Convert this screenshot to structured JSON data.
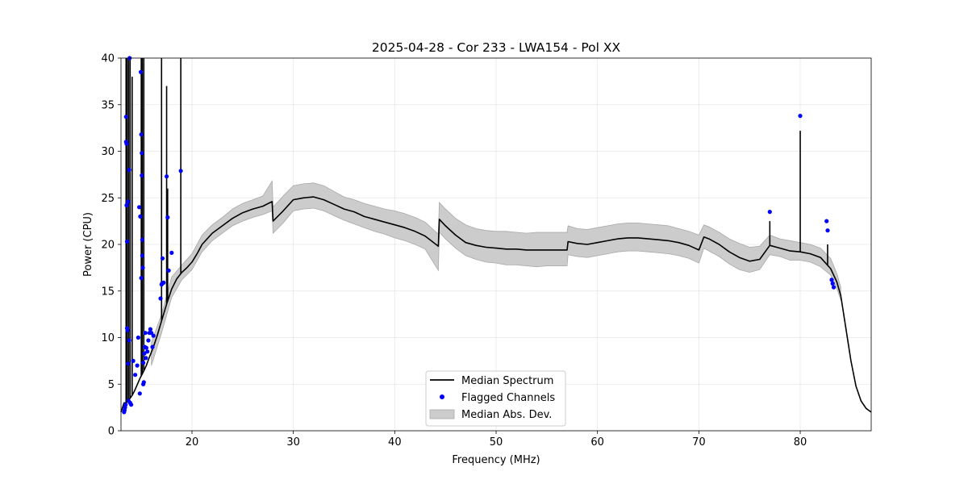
{
  "chart_data": {
    "type": "line",
    "title": "2025-04-28 - Cor 233 - LWA154 - Pol XX",
    "xlabel": "Frequency (MHz)",
    "ylabel": "Power (CPU)",
    "xlim": [
      13.0,
      87.0
    ],
    "ylim": [
      0,
      40
    ],
    "xticks": [
      20,
      30,
      40,
      50,
      60,
      70,
      80
    ],
    "yticks": [
      0,
      5,
      10,
      15,
      20,
      25,
      30,
      35,
      40
    ],
    "grid": true,
    "legend_position": "bottom-center",
    "series": [
      {
        "name": "Median Spectrum",
        "kind": "line",
        "color": "#000000",
        "x": [
          13.0,
          13.3,
          13.5,
          13.7,
          13.9,
          14.1,
          14.3,
          14.5,
          14.7,
          14.9,
          15.2,
          15.5,
          15.8,
          16.2,
          16.6,
          17.0,
          17.5,
          18.0,
          18.5,
          19.0,
          19.5,
          20.0,
          20.5,
          21.0,
          22.0,
          23.0,
          24.0,
          25.0,
          26.0,
          27.0,
          27.9,
          28.0,
          29.0,
          30.0,
          31.0,
          32.0,
          33.0,
          34.0,
          35.0,
          36.0,
          37.0,
          38.0,
          39.0,
          40.0,
          41.0,
          42.0,
          43.0,
          44.3,
          44.4,
          45.0,
          46.0,
          47.0,
          48.0,
          49.0,
          50.0,
          51.0,
          52.0,
          53.0,
          54.0,
          55.0,
          56.0,
          57.0,
          57.1,
          58.0,
          59.0,
          60.0,
          61.0,
          62.0,
          63.0,
          64.0,
          65.0,
          66.0,
          67.0,
          68.0,
          69.0,
          70.0,
          70.5,
          71.0,
          72.0,
          73.0,
          74.0,
          75.0,
          76.0,
          77.0,
          78.0,
          79.0,
          80.0,
          81.0,
          82.0,
          83.0,
          83.6,
          84.0,
          84.5,
          85.0,
          85.5,
          86.0,
          86.5,
          87.0
        ],
        "y": [
          2.0,
          3.0,
          3.0,
          3.2,
          3.5,
          3.8,
          4.2,
          4.7,
          5.2,
          5.7,
          6.3,
          7.0,
          7.9,
          9.0,
          10.3,
          11.8,
          13.6,
          15.2,
          16.3,
          17.0,
          17.5,
          18.1,
          19.0,
          20.0,
          21.2,
          22.0,
          22.8,
          23.4,
          23.8,
          24.1,
          24.6,
          22.5,
          23.6,
          24.8,
          25.0,
          25.1,
          24.8,
          24.3,
          23.8,
          23.5,
          23.0,
          22.7,
          22.4,
          22.1,
          21.8,
          21.4,
          20.9,
          19.8,
          22.7,
          22.0,
          21.0,
          20.2,
          19.9,
          19.7,
          19.6,
          19.5,
          19.5,
          19.4,
          19.4,
          19.4,
          19.4,
          19.4,
          20.3,
          20.1,
          20.0,
          20.2,
          20.4,
          20.6,
          20.7,
          20.7,
          20.6,
          20.5,
          20.4,
          20.2,
          19.9,
          19.4,
          20.8,
          20.6,
          20.0,
          19.2,
          18.6,
          18.2,
          18.4,
          19.9,
          19.6,
          19.3,
          19.2,
          19.0,
          18.6,
          17.4,
          16.0,
          14.5,
          11.0,
          7.5,
          4.8,
          3.2,
          2.4,
          2.0
        ]
      },
      {
        "name": "Flagged Channels",
        "kind": "scatter",
        "color": "#0000ff",
        "x": [
          13.3,
          13.35,
          13.4,
          13.45,
          13.5,
          13.5,
          13.55,
          13.55,
          13.6,
          13.6,
          13.65,
          13.7,
          13.7,
          13.75,
          13.8,
          13.8,
          13.85,
          13.9,
          14.0,
          14.2,
          14.4,
          14.6,
          14.7,
          14.8,
          14.85,
          14.9,
          14.95,
          15.0,
          15.0,
          15.05,
          15.05,
          15.1,
          15.1,
          15.15,
          15.2,
          15.2,
          15.25,
          15.3,
          15.35,
          15.4,
          15.45,
          15.5,
          15.6,
          15.7,
          15.8,
          15.9,
          16.0,
          16.1,
          16.2,
          16.9,
          17.0,
          17.05,
          17.1,
          17.2,
          17.5,
          17.6,
          17.7,
          18.0,
          18.9,
          77.0,
          80.0,
          82.6,
          82.7,
          83.1,
          83.2,
          83.3
        ],
        "y": [
          2.0,
          2.2,
          2.5,
          2.8,
          33.7,
          31.0,
          30.8,
          24.2,
          20.3,
          11.0,
          10.8,
          7.2,
          24.6,
          3.2,
          28.0,
          9.7,
          40.0,
          3.0,
          2.8,
          7.5,
          6.0,
          7.0,
          10.0,
          24.0,
          4.0,
          23.0,
          38.5,
          31.8,
          16.4,
          27.4,
          29.8,
          20.5,
          18.8,
          17.5,
          5.0,
          7.3,
          5.2,
          8.3,
          9.0,
          10.5,
          7.8,
          8.9,
          8.5,
          9.7,
          10.5,
          10.9,
          10.5,
          9.0,
          10.2,
          14.2,
          15.7,
          15.8,
          18.5,
          15.9,
          27.3,
          22.9,
          17.2,
          19.1,
          27.9,
          23.5,
          33.8,
          22.5,
          21.5,
          16.2,
          15.8,
          15.4
        ]
      },
      {
        "name": "Median Abs. Dev.",
        "kind": "band",
        "color": "#cccccc",
        "x": [
          16.0,
          17.0,
          18.0,
          19.0,
          20.0,
          21.0,
          22.0,
          23.0,
          24.0,
          25.0,
          26.0,
          27.0,
          27.9,
          28.0,
          29.0,
          30.0,
          31.0,
          32.0,
          33.0,
          34.0,
          35.0,
          36.0,
          37.0,
          38.0,
          39.0,
          40.0,
          41.0,
          42.0,
          43.0,
          44.3,
          44.4,
          45.0,
          46.0,
          47.0,
          48.0,
          49.0,
          50.0,
          51.0,
          52.0,
          53.0,
          54.0,
          55.0,
          56.0,
          57.0,
          57.1,
          58.0,
          59.0,
          60.0,
          61.0,
          62.0,
          63.0,
          64.0,
          65.0,
          66.0,
          67.0,
          68.0,
          69.0,
          70.0,
          70.5,
          71.0,
          72.0,
          73.0,
          74.0,
          75.0,
          76.0,
          77.0,
          78.0,
          79.0,
          80.0,
          81.0,
          82.0,
          83.0,
          83.6,
          84.0
        ],
        "low": [
          7.0,
          10.5,
          14.3,
          16.2,
          17.3,
          19.2,
          20.4,
          21.2,
          22.0,
          22.5,
          22.9,
          23.2,
          23.6,
          21.2,
          22.3,
          23.6,
          23.8,
          23.9,
          23.6,
          23.1,
          22.6,
          22.2,
          21.8,
          21.4,
          21.1,
          20.7,
          20.4,
          20.0,
          19.5,
          17.2,
          21.3,
          20.6,
          19.6,
          18.8,
          18.4,
          18.1,
          18.0,
          17.8,
          17.8,
          17.7,
          17.6,
          17.7,
          17.7,
          17.7,
          18.9,
          18.7,
          18.6,
          18.8,
          19.0,
          19.2,
          19.3,
          19.3,
          19.2,
          19.1,
          19.0,
          18.8,
          18.5,
          18.0,
          19.6,
          19.3,
          18.7,
          17.9,
          17.3,
          17.0,
          17.3,
          18.9,
          18.7,
          18.3,
          18.3,
          18.1,
          17.6,
          16.7,
          15.3,
          14.0
        ],
        "high": [
          9.5,
          12.5,
          16.5,
          17.8,
          19.0,
          21.0,
          22.1,
          22.9,
          23.8,
          24.4,
          24.8,
          25.2,
          26.8,
          24.0,
          25.2,
          26.3,
          26.5,
          26.6,
          26.3,
          25.7,
          25.1,
          24.8,
          24.4,
          24.1,
          23.8,
          23.6,
          23.3,
          22.9,
          22.4,
          21.1,
          24.5,
          23.8,
          22.8,
          22.1,
          21.7,
          21.5,
          21.4,
          21.4,
          21.3,
          21.2,
          21.3,
          21.3,
          21.3,
          21.3,
          22.0,
          21.7,
          21.6,
          21.8,
          22.0,
          22.2,
          22.3,
          22.3,
          22.2,
          22.1,
          22.0,
          21.7,
          21.4,
          21.0,
          22.1,
          21.9,
          21.3,
          20.6,
          20.1,
          19.7,
          19.8,
          21.0,
          20.6,
          20.4,
          20.2,
          20.0,
          19.6,
          18.5,
          16.9,
          15.4
        ]
      }
    ],
    "spikes": [
      {
        "x": 13.5,
        "y": 40.0
      },
      {
        "x": 13.6,
        "y": 40.0
      },
      {
        "x": 13.75,
        "y": 40.0
      },
      {
        "x": 13.9,
        "y": 40.0
      },
      {
        "x": 14.1,
        "y": 38.0
      },
      {
        "x": 15.0,
        "y": 40.0
      },
      {
        "x": 15.1,
        "y": 40.0
      },
      {
        "x": 15.25,
        "y": 40.0
      },
      {
        "x": 17.0,
        "y": 40.0
      },
      {
        "x": 17.5,
        "y": 37.0
      },
      {
        "x": 17.6,
        "y": 26.0
      },
      {
        "x": 18.9,
        "y": 40.0
      },
      {
        "x": 77.0,
        "y": 22.5
      },
      {
        "x": 80.0,
        "y": 32.2
      },
      {
        "x": 82.7,
        "y": 20.0
      }
    ]
  }
}
